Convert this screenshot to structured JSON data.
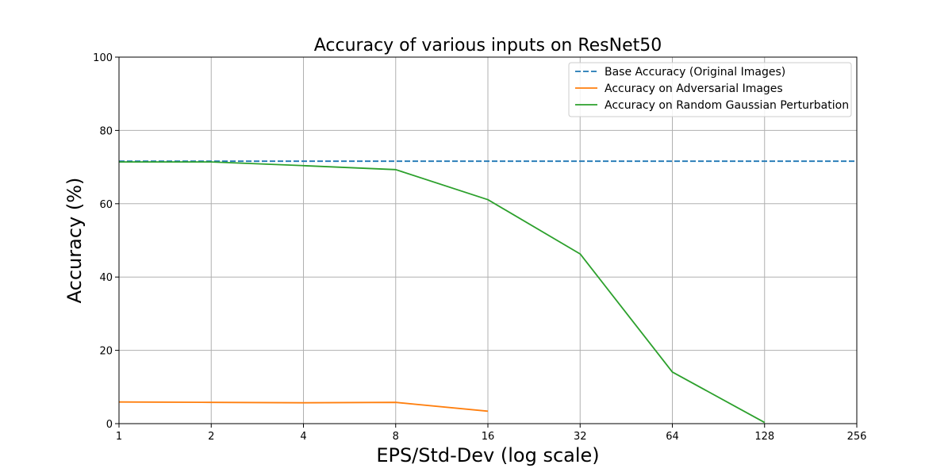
{
  "chart_data": {
    "type": "line",
    "title": "Accuracy of various inputs on ResNet50",
    "xlabel": "EPS/Std-Dev (log scale)",
    "ylabel": "Accuracy (%)",
    "x_scale": "log2",
    "xlim": [
      1,
      256
    ],
    "ylim": [
      0,
      100
    ],
    "xticks": [
      1,
      2,
      4,
      8,
      16,
      32,
      64,
      128,
      256
    ],
    "xtick_labels": [
      "1",
      "2",
      "4",
      "8",
      "16",
      "32",
      "64",
      "128",
      "256"
    ],
    "yticks": [
      0,
      20,
      40,
      60,
      80,
      100
    ],
    "ytick_labels": [
      "0",
      "20",
      "40",
      "60",
      "80",
      "100"
    ],
    "grid": true,
    "legend_position": "top-right",
    "series": [
      {
        "name": "Base Accuracy (Original Images)",
        "color": "#1f77b4",
        "style": "dashed",
        "x": [
          1,
          256
        ],
        "y": [
          71.6,
          71.6
        ]
      },
      {
        "name": "Accuracy on Adversarial Images",
        "color": "#ff7f0e",
        "style": "solid",
        "x": [
          1,
          2,
          4,
          8,
          16
        ],
        "y": [
          5.9,
          5.8,
          5.7,
          5.8,
          3.4
        ]
      },
      {
        "name": "Accuracy on Random Gaussian Perturbation",
        "color": "#2ca02c",
        "style": "solid",
        "x": [
          1,
          2,
          4,
          8,
          16,
          32,
          64,
          128
        ],
        "y": [
          71.4,
          71.4,
          70.4,
          69.3,
          61.1,
          46.3,
          14.1,
          0.3
        ]
      }
    ]
  }
}
